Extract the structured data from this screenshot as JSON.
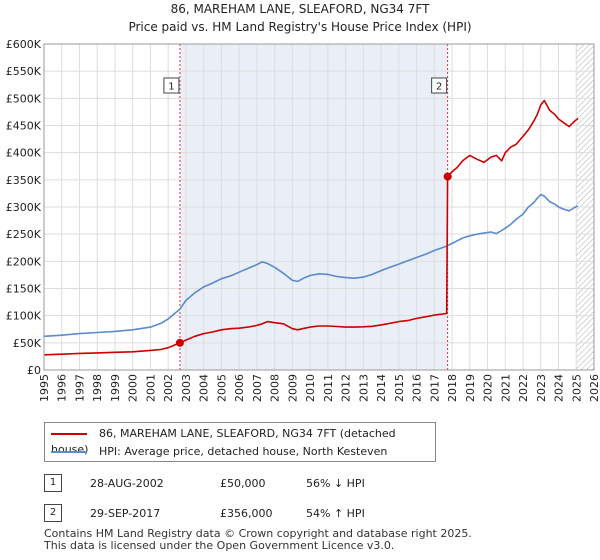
{
  "chart_data": {
    "type": "line",
    "title": "86, MAREHAM LANE, SLEAFORD, NG34 7FT",
    "subtitle": "Price paid vs. HM Land Registry's House Price Index (HPI)",
    "xlim": [
      1995,
      2026
    ],
    "ylim": [
      0,
      600000
    ],
    "x_ticks": [
      "1995",
      "1996",
      "1997",
      "1998",
      "1999",
      "2000",
      "2001",
      "2002",
      "2003",
      "2004",
      "2005",
      "2006",
      "2007",
      "2008",
      "2009",
      "2010",
      "2011",
      "2012",
      "2013",
      "2014",
      "2015",
      "2016",
      "2017",
      "2018",
      "2019",
      "2020",
      "2021",
      "2022",
      "2023",
      "2024",
      "2025",
      "2026"
    ],
    "y_ticks": [
      {
        "value": 0,
        "label": "£0"
      },
      {
        "value": 50000,
        "label": "£50K"
      },
      {
        "value": 100000,
        "label": "£100K"
      },
      {
        "value": 150000,
        "label": "£150K"
      },
      {
        "value": 200000,
        "label": "£200K"
      },
      {
        "value": 250000,
        "label": "£250K"
      },
      {
        "value": 300000,
        "label": "£300K"
      },
      {
        "value": 350000,
        "label": "£350K"
      },
      {
        "value": 400000,
        "label": "£400K"
      },
      {
        "value": 450000,
        "label": "£450K"
      },
      {
        "value": 500000,
        "label": "£500K"
      },
      {
        "value": 550000,
        "label": "£550K"
      },
      {
        "value": 600000,
        "label": "£600K"
      }
    ],
    "grid": true,
    "shaded_periods": [
      {
        "from": 2002.66,
        "to": 2017.75
      },
      {
        "from": 2025.0,
        "to": 2026,
        "hatched": true
      }
    ],
    "series": [
      {
        "name": "86, MAREHAM LANE, SLEAFORD, NG34 7FT (detached house)",
        "color": "#cc0000",
        "x": [
          1995.0,
          1996.0,
          1997.0,
          1998.0,
          1999.0,
          2000.0,
          2001.0,
          2001.6,
          2002.0,
          2002.66,
          2003.0,
          2003.5,
          2004.0,
          2004.5,
          2005.0,
          2005.5,
          2006.0,
          2006.5,
          2007.0,
          2007.3,
          2007.6,
          2008.0,
          2008.5,
          2009.0,
          2009.3,
          2009.7,
          2010.0,
          2010.5,
          2011.0,
          2011.5,
          2012.0,
          2012.5,
          2013.0,
          2013.5,
          2014.0,
          2014.5,
          2015.0,
          2015.5,
          2016.0,
          2016.5,
          2017.0,
          2017.7,
          2017.75,
          2018.0,
          2018.3,
          2018.6,
          2019.0,
          2019.4,
          2019.8,
          2020.2,
          2020.5,
          2020.8,
          2021.0,
          2021.3,
          2021.6,
          2022.0,
          2022.3,
          2022.6,
          2022.8,
          2023.0,
          2023.2,
          2023.5,
          2023.8,
          2024.0,
          2024.3,
          2024.6,
          2024.9,
          2025.1
        ],
        "values": [
          28000,
          29000,
          30500,
          31500,
          32500,
          33500,
          36000,
          38000,
          41000,
          50000,
          55000,
          62000,
          67000,
          70000,
          74000,
          76000,
          77000,
          79000,
          82000,
          85000,
          89000,
          87000,
          85000,
          76000,
          74000,
          77000,
          79000,
          81000,
          81000,
          80000,
          79000,
          79000,
          79500,
          80500,
          83000,
          86000,
          89000,
          91000,
          95000,
          98000,
          101000,
          104000,
          356000,
          365000,
          373000,
          385000,
          395000,
          388000,
          382000,
          392000,
          395000,
          385000,
          400000,
          410000,
          415000,
          430000,
          442000,
          458000,
          470000,
          488000,
          496000,
          478000,
          470000,
          462000,
          455000,
          448000,
          458000,
          463000
        ]
      },
      {
        "name": "HPI: Average price, detached house, North Kesteven",
        "color": "#5b8bc9",
        "x": [
          1995.0,
          1996.0,
          1997.0,
          1998.0,
          1999.0,
          2000.0,
          2001.0,
          2001.6,
          2002.0,
          2002.66,
          2003.0,
          2003.5,
          2004.0,
          2004.5,
          2005.0,
          2005.5,
          2006.0,
          2006.5,
          2007.0,
          2007.3,
          2007.6,
          2008.0,
          2008.5,
          2009.0,
          2009.3,
          2009.7,
          2010.0,
          2010.5,
          2011.0,
          2011.5,
          2012.0,
          2012.5,
          2013.0,
          2013.5,
          2014.0,
          2014.5,
          2015.0,
          2015.5,
          2016.0,
          2016.5,
          2017.0,
          2017.7,
          2018.0,
          2018.3,
          2018.6,
          2019.0,
          2019.4,
          2019.8,
          2020.2,
          2020.5,
          2020.8,
          2021.0,
          2021.3,
          2021.6,
          2022.0,
          2022.3,
          2022.6,
          2022.8,
          2023.0,
          2023.2,
          2023.5,
          2023.8,
          2024.0,
          2024.3,
          2024.6,
          2024.9,
          2025.1
        ],
        "values": [
          62000,
          64000,
          67000,
          69000,
          71000,
          74000,
          79000,
          86000,
          94000,
          112000,
          128000,
          142000,
          153000,
          160000,
          168000,
          173000,
          180000,
          187000,
          194000,
          199000,
          196000,
          189000,
          178000,
          165000,
          163000,
          170000,
          174000,
          177000,
          176000,
          172000,
          170000,
          169000,
          171000,
          176000,
          183000,
          189000,
          195000,
          201000,
          207000,
          213000,
          220000,
          228000,
          233000,
          238000,
          243000,
          247000,
          250000,
          252000,
          254000,
          251000,
          257000,
          261000,
          268000,
          277000,
          287000,
          300000,
          308000,
          316000,
          323000,
          320000,
          310000,
          305000,
          300000,
          296000,
          293000,
          299000,
          302000
        ]
      }
    ],
    "annotations": [
      {
        "label": "1",
        "x": 2002.66,
        "value": 50000
      },
      {
        "label": "2",
        "x": 2017.75,
        "value": 356000
      }
    ]
  },
  "legend": {
    "property_label": "86, MAREHAM LANE, SLEAFORD, NG34 7FT (detached house)",
    "hpi_label": "HPI: Average price, detached house, North Kesteven"
  },
  "sales": [
    {
      "badge": "1",
      "date": "28-AUG-2002",
      "price": "£50,000",
      "hpi": "56% ↓ HPI"
    },
    {
      "badge": "2",
      "date": "29-SEP-2017",
      "price": "£356,000",
      "hpi": "54% ↑ HPI"
    }
  ],
  "footer": {
    "line1": "Contains HM Land Registry data © Crown copyright and database right 2025.",
    "line2": "This data is licensed under the Open Government Licence v3.0."
  }
}
